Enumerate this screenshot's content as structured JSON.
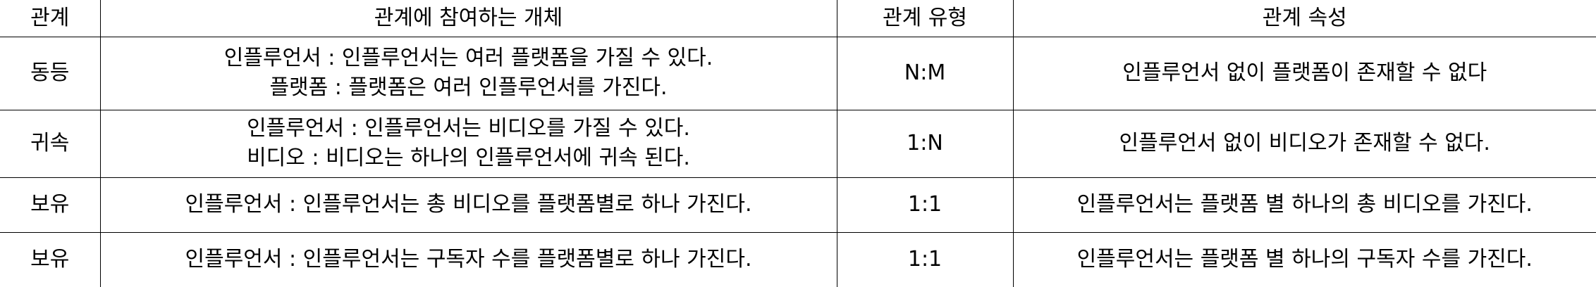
{
  "headers": [
    "관계",
    "관계에 참여하는 개체",
    "관계 유형",
    "관계 속성"
  ],
  "rows": [
    {
      "relation": "동등",
      "entities": [
        "인플루언서 : 인플루언서는 여러 플랫폼을 가질 수 있다.",
        "플랫폼 : 플랫폼은 여러 인플루언서를 가진다."
      ],
      "type": "N:M",
      "attribute": "인플루언서 없이 플랫폼이 존재할 수 없다"
    },
    {
      "relation": "귀속",
      "entities": [
        "인플루언서 : 인플루언서는 비디오를 가질 수 있다.",
        "비디오 : 비디오는 하나의 인플루언서에 귀속 된다."
      ],
      "type": "1:N",
      "attribute": "인플루언서 없이 비디오가 존재할 수 없다."
    },
    {
      "relation": "보유",
      "entities": [
        "인플루언서 : 인플루언서는 총 비디오를 플랫폼별로 하나 가진다."
      ],
      "type": "1:1",
      "attribute": "인플루언서는 플랫폼 별 하나의 총 비디오를 가진다."
    },
    {
      "relation": "보유",
      "entities": [
        "인플루언서 : 인플루언서는 구독자 수를 플랫폼별로 하나 가진다."
      ],
      "type": "1:1",
      "attribute": "인플루언서는 플랫폼 별 하나의 구독자 수를 가진다."
    }
  ]
}
